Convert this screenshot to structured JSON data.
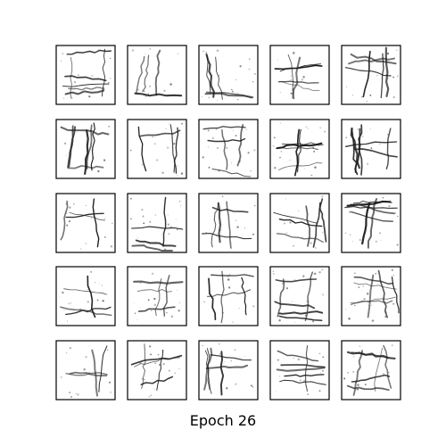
{
  "figure": {
    "caption": "Epoch 26",
    "rows": 5,
    "cols": 5,
    "frame_color": "#000000",
    "stroke_color": "#1a1a1a",
    "background": "#ffffff"
  },
  "samples": [
    {
      "glyph": "sample-01"
    },
    {
      "glyph": "sample-02"
    },
    {
      "glyph": "sample-03"
    },
    {
      "glyph": "sample-04"
    },
    {
      "glyph": "sample-05"
    },
    {
      "glyph": "sample-06"
    },
    {
      "glyph": "sample-07"
    },
    {
      "glyph": "sample-08"
    },
    {
      "glyph": "sample-09"
    },
    {
      "glyph": "sample-10"
    },
    {
      "glyph": "sample-11"
    },
    {
      "glyph": "sample-12"
    },
    {
      "glyph": "sample-13"
    },
    {
      "glyph": "sample-14"
    },
    {
      "glyph": "sample-15"
    },
    {
      "glyph": "sample-16"
    },
    {
      "glyph": "sample-17"
    },
    {
      "glyph": "sample-18"
    },
    {
      "glyph": "sample-19"
    },
    {
      "glyph": "sample-20"
    },
    {
      "glyph": "sample-21"
    },
    {
      "glyph": "sample-22"
    },
    {
      "glyph": "sample-23"
    },
    {
      "glyph": "sample-24"
    },
    {
      "glyph": "sample-25"
    }
  ]
}
